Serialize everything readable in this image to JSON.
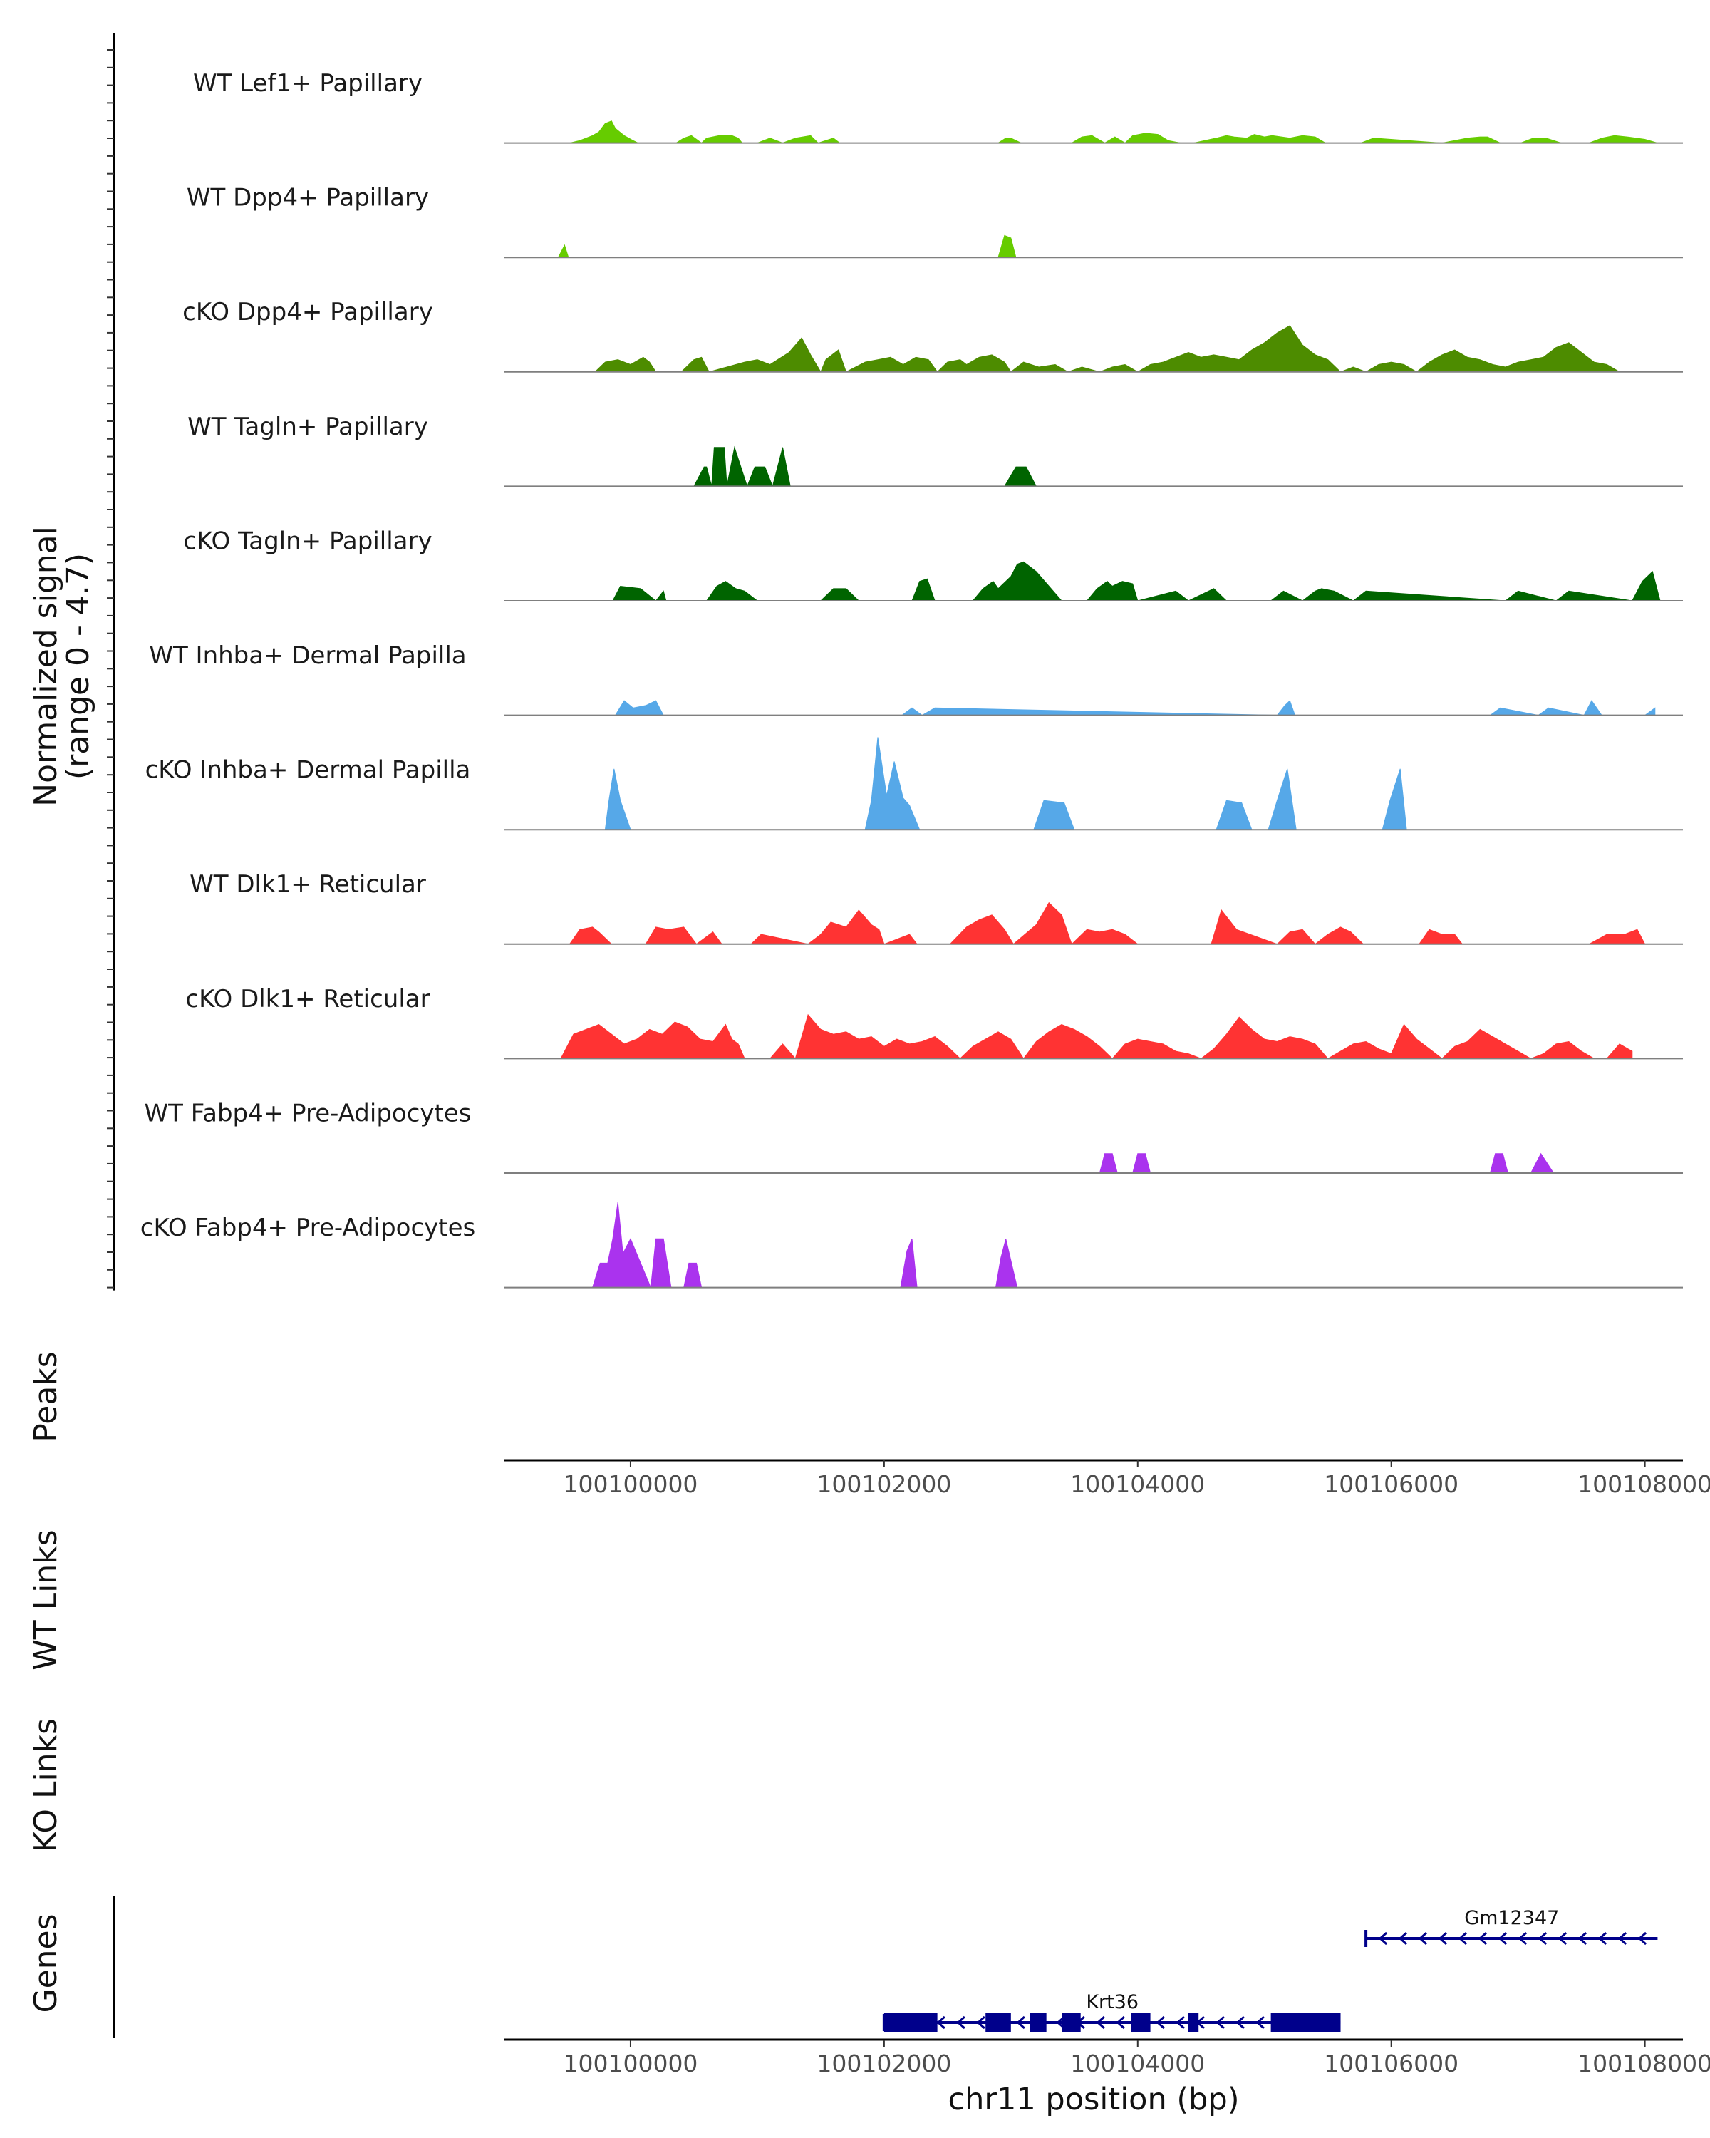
{
  "chart_data": {
    "type": "area",
    "chromosome": "chr11",
    "xlim": [
      100099000,
      100108300
    ],
    "x_ticks": [
      100100000,
      100102000,
      100104000,
      100106000,
      100108000
    ],
    "x_tick_labels": [
      "100100000",
      "100102000",
      "100104000",
      "100106000",
      "100108000"
    ],
    "xlabel": "chr11 position (bp)",
    "ylabel_line1": "Normalized signal",
    "ylabel_line2": "(range 0 - 4.7)",
    "ylim": [
      0,
      4.7
    ],
    "peaks_label": "Peaks",
    "wt_links_label": "WT Links",
    "ko_links_label": "KO Links",
    "genes_label": "Genes",
    "series": [
      {
        "name": "WT Lef1+ Papillary",
        "color": "#66cc00",
        "x": [
          100099520,
          100099600,
          100099700,
          100099750,
          100099800,
          100099850,
          100099880,
          100099950,
          100100020,
          100100060,
          100100360,
          100100420,
          100100480,
          100100560,
          100100600,
          100100700,
          100100800,
          100100850,
          100100880,
          100101000,
          100101050,
          100101100,
          100101200,
          100101300,
          100101420,
          100101480,
          100101600,
          100101650,
          100102900,
          100102960,
          100103000,
          100103080,
          100103480,
          100103560,
          100103640,
          100103740,
          100103820,
          100103900,
          100103960,
          100104060,
          100104160,
          100104240,
          100104340,
          100104440,
          100104620,
          100104700,
          100104760,
          100104860,
          100104920,
          100105000,
          100105060,
          100105200,
          100105300,
          100105400,
          100105480,
          100105560,
          100105760,
          100105860,
          100106400,
          100106500,
          100106600,
          100106700,
          100106760,
          100106860,
          100107020,
          100107120,
          100107220,
          100107340,
          100107560,
          100107660,
          100107760,
          100107860,
          100108000,
          100108100
        ],
        "y": [
          0,
          0.1,
          0.3,
          0.45,
          0.8,
          0.9,
          0.6,
          0.3,
          0.1,
          0,
          0,
          0.2,
          0.3,
          0,
          0.2,
          0.3,
          0.3,
          0.2,
          0,
          0,
          0.1,
          0.2,
          0,
          0.2,
          0.3,
          0,
          0.2,
          0,
          0,
          0.2,
          0.2,
          0,
          0,
          0.25,
          0.3,
          0,
          0.25,
          0,
          0.3,
          0.4,
          0.35,
          0.1,
          0,
          0,
          0.2,
          0.3,
          0.25,
          0.2,
          0.35,
          0.25,
          0.3,
          0.2,
          0.3,
          0.25,
          0,
          0,
          0,
          0.2,
          0,
          0.1,
          0.2,
          0.25,
          0.25,
          0,
          0,
          0.2,
          0.2,
          0,
          0,
          0.2,
          0.3,
          0.25,
          0.15,
          0
        ]
      },
      {
        "name": "WT Dpp4+ Papillary",
        "color": "#66cc00",
        "x": [
          100099430,
          100099480,
          100099510,
          100102900,
          100102950,
          100103000,
          100103040
        ],
        "y": [
          0,
          0.5,
          0,
          0,
          0.9,
          0.8,
          0
        ]
      },
      {
        "name": "cKO Dpp4+ Papillary",
        "color": "#4d8c00",
        "x": [
          100099720,
          100099800,
          100099900,
          100100000,
          100100100,
          100100150,
          100100200,
          100100400,
          100100500,
          100100560,
          100100620,
          100100900,
          100101000,
          100101100,
          100101250,
          100101350,
          100101420,
          100101500,
          100101540,
          100101640,
          100101700,
          100101850,
          100101950,
          100102050,
          100102150,
          100102250,
          100102350,
          100102420,
          100102500,
          100102600,
          100102650,
          100102750,
          100102850,
          100102950,
          100103000,
          100103100,
          100103220,
          100103350,
          100103450,
          100103560,
          100103700,
          100103800,
          100103900,
          100104000,
          100104100,
          100104200,
          100104300,
          100104400,
          100104500,
          100104600,
          100104700,
          100104800,
          100104900,
          100105000,
          100105100,
          100105200,
          100105300,
          100105400,
          100105500,
          100105600,
          100105700,
          100105800,
          100105900,
          100106000,
          100106100,
          100106200,
          100106300,
          100106400,
          100106500,
          100106600,
          100106700,
          100106800,
          100106900,
          100107000,
          100107100,
          100107200,
          100107300,
          100107400,
          100107500,
          100107600,
          100107700,
          100107800,
          100107900,
          100108000
        ],
        "y": [
          0,
          0.4,
          0.5,
          0.3,
          0.6,
          0.4,
          0,
          0,
          0.5,
          0.6,
          0,
          0.4,
          0.5,
          0.3,
          0.8,
          1.4,
          0.7,
          0,
          0.5,
          0.9,
          0,
          0.4,
          0.5,
          0.6,
          0.3,
          0.6,
          0.5,
          0,
          0.4,
          0.5,
          0.3,
          0.6,
          0.7,
          0.4,
          0,
          0.4,
          0.2,
          0.3,
          0,
          0.2,
          0,
          0.2,
          0.3,
          0,
          0.3,
          0.4,
          0.6,
          0.8,
          0.6,
          0.7,
          0.6,
          0.5,
          0.9,
          1.2,
          1.6,
          1.9,
          1.1,
          0.7,
          0.5,
          0,
          0.2,
          0,
          0.3,
          0.4,
          0.3,
          0,
          0.4,
          0.7,
          0.9,
          0.6,
          0.5,
          0.3,
          0.2,
          0.4,
          0.5,
          0.6,
          1.0,
          1.2,
          0.8,
          0.4,
          0.3,
          0,
          0,
          0
        ]
      },
      {
        "name": "WT Tagln+ Papillary",
        "color": "#006400",
        "x": [
          100100500,
          100100580,
          100100600,
          100100640,
          100100660,
          100100740,
          100100760,
          100100820,
          100100920,
          100100980,
          100101060,
          100101120,
          100101200,
          100101260,
          100102950,
          100103040,
          100103120,
          100103200
        ],
        "y": [
          0,
          0.8,
          0.8,
          0,
          1.6,
          1.6,
          0,
          1.6,
          0,
          0.8,
          0.8,
          0,
          1.6,
          0,
          0,
          0.8,
          0.8,
          0
        ]
      },
      {
        "name": "cKO Tagln+ Papillary",
        "color": "#006400",
        "x": [
          100099860,
          100099920,
          100100080,
          100100200,
          100100260,
          100100280,
          100100600,
          100100680,
          100100750,
          100100830,
          100100900,
          100101000,
          100101500,
          100101600,
          100101700,
          100101800,
          100102220,
          100102280,
          100102340,
          100102400,
          100102700,
          100102780,
          100102860,
          100102900,
          100103000,
          100103050,
          100103100,
          100103200,
          100103300,
          100103400,
          100103600,
          100103680,
          100103760,
          100103800,
          100103880,
          100103960,
          100104000,
          100104300,
          100104400,
          100104600,
          100104700,
          100105050,
          100105150,
          100105300,
          100105400,
          100105450,
          100105550,
          100105700,
          100105800,
          100106900,
          100107000,
          100107300,
          100107400,
          100107900,
          100107980,
          100108060,
          100108120
        ],
        "y": [
          0,
          0.6,
          0.5,
          0,
          0.4,
          0,
          0,
          0.6,
          0.8,
          0.5,
          0.4,
          0,
          0,
          0.5,
          0.5,
          0,
          0,
          0.8,
          0.9,
          0,
          0,
          0.5,
          0.8,
          0.5,
          1.0,
          1.5,
          1.6,
          1.2,
          0.6,
          0,
          0,
          0.5,
          0.8,
          0.6,
          0.8,
          0.7,
          0,
          0.4,
          0,
          0.5,
          0,
          0,
          0.4,
          0,
          0.4,
          0.5,
          0.4,
          0,
          0.4,
          0,
          0.4,
          0,
          0.4,
          0,
          0.8,
          1.2,
          0
        ]
      },
      {
        "name": "WT Inhba+ Dermal Papilla",
        "color": "#56a8e8",
        "x": [
          100099880,
          100099950,
          100100020,
          100100120,
          100100200,
          100100260,
          100102140,
          100102220,
          100102300,
          100102400,
          100105100,
          100105160,
          100105200,
          100105240,
          100106780,
          100106860,
          100107160,
          100107240,
          100107520,
          100107580,
          100107660,
          100108000,
          100108080
        ],
        "y": [
          0,
          0.6,
          0.3,
          0.4,
          0.6,
          0,
          0,
          0.3,
          0,
          0.3,
          0,
          0.4,
          0.6,
          0,
          0,
          0.3,
          0,
          0.3,
          0,
          0.6,
          0,
          0,
          0.3
        ]
      },
      {
        "name": "cKO Inhba+ Dermal Papilla",
        "color": "#56a8e8",
        "x": [
          100099800,
          100099830,
          100099870,
          100099920,
          100100000,
          100101850,
          100101900,
          100101950,
          100102020,
          100102080,
          100102150,
          100102200,
          100102280,
          100103180,
          100103260,
          100103420,
          100103500,
          100104620,
          100104700,
          100104820,
          100104900,
          100105030,
          100105100,
          100105180,
          100105250,
          100105930,
          100105990,
          100106070,
          100106120
        ],
        "y": [
          0,
          1.2,
          2.5,
          1.2,
          0,
          0,
          1.2,
          3.8,
          1.4,
          2.8,
          1.3,
          1.0,
          0,
          0,
          1.2,
          1.1,
          0,
          0,
          1.2,
          1.1,
          0,
          0,
          1.2,
          2.5,
          0,
          0,
          1.2,
          2.5,
          0
        ]
      },
      {
        "name": "WT Dlk1+ Reticular",
        "color": "#ff3333",
        "x": [
          100099520,
          100099600,
          100099700,
          100099750,
          100099850,
          100100120,
          100100200,
          100100300,
          100100420,
          100100520,
          100100650,
          100100720,
          100100950,
          100101030,
          100101400,
          100101500,
          100101580,
          100101700,
          100101800,
          100101900,
          100101960,
          100102000,
          100102200,
          100102260,
          100102520,
          100102650,
          100102750,
          100102850,
          100102950,
          100103020,
          100103200,
          100103300,
          100103400,
          100103480,
          100103600,
          100103700,
          100103800,
          100103900,
          100104000,
          100104580,
          100104660,
          100104780,
          100105100,
          100105200,
          100105300,
          100105400,
          100105500,
          100105600,
          100105680,
          100105780,
          100106220,
          100106300,
          100106400,
          100106500,
          100106560,
          100107560,
          100107700,
          100107840,
          100107940,
          100108000
        ],
        "y": [
          0,
          0.6,
          0.7,
          0.5,
          0,
          0,
          0.7,
          0.6,
          0.7,
          0,
          0.5,
          0,
          0,
          0.4,
          0,
          0.4,
          0.9,
          0.7,
          1.4,
          0.8,
          0.6,
          0,
          0.4,
          0,
          0,
          0.7,
          1.0,
          1.2,
          0.6,
          0,
          0.8,
          1.7,
          1.2,
          0,
          0.6,
          0.5,
          0.6,
          0.4,
          0,
          0,
          1.4,
          0.6,
          0,
          0.5,
          0.6,
          0,
          0.4,
          0.7,
          0.5,
          0,
          0,
          0.6,
          0.4,
          0.4,
          0,
          0,
          0.4,
          0.4,
          0.6,
          0
        ]
      },
      {
        "name": "cKO Dlk1+ Reticular",
        "color": "#ff3333",
        "x": [
          100099450,
          100099550,
          100099650,
          100099750,
          100099850,
          100099950,
          100100050,
          100100150,
          100100250,
          100100350,
          100100450,
          100100550,
          100100650,
          100100750,
          100100800,
          100100850,
          100100900,
          100101100,
          100101200,
          100101300,
          100101400,
          100101500,
          100101600,
          100101700,
          100101800,
          100101900,
          100102000,
          100102100,
          100102200,
          100102300,
          100102400,
          100102500,
          100102600,
          100102700,
          100102800,
          100102900,
          100103000,
          100103100,
          100103200,
          100103300,
          100103400,
          100103500,
          100103600,
          100103700,
          100103800,
          100103900,
          100104000,
          100104100,
          100104200,
          100104300,
          100104400,
          100104500,
          100104600,
          100104700,
          100104800,
          100104900,
          100105000,
          100105100,
          100105200,
          100105300,
          100105400,
          100105500,
          100105600,
          100105700,
          100105800,
          100105900,
          100106000,
          100106100,
          100106200,
          100106300,
          100106400,
          100106500,
          100106600,
          100106700,
          100106800,
          100106900,
          100107000,
          100107100,
          100107200,
          100107300,
          100107400,
          100107500,
          100107600,
          100107700,
          100107800,
          100107900
        ],
        "y": [
          0,
          1.0,
          1.2,
          1.4,
          1.0,
          0.6,
          0.8,
          1.2,
          1.0,
          1.5,
          1.3,
          0.8,
          0.7,
          1.4,
          0.8,
          0.6,
          0,
          0,
          0.6,
          0,
          1.8,
          1.2,
          1.0,
          1.1,
          0.8,
          0.9,
          0.5,
          0.8,
          0.6,
          0.7,
          0.9,
          0.5,
          0,
          0.5,
          0.8,
          1.1,
          0.8,
          0,
          0.7,
          1.1,
          1.4,
          1.2,
          0.9,
          0.5,
          0,
          0.6,
          0.8,
          0.7,
          0.6,
          0.3,
          0.2,
          0,
          0.4,
          1.0,
          1.7,
          1.2,
          0.8,
          0.7,
          0.9,
          0.8,
          0.6,
          0,
          0.3,
          0.6,
          0.7,
          0.4,
          0.2,
          1.4,
          0.8,
          0.4,
          0,
          0.5,
          0.7,
          1.2,
          0.9,
          0.6,
          0.3,
          0,
          0.2,
          0.6,
          0.7,
          0.3,
          0,
          0,
          0.6,
          0.3
        ]
      },
      {
        "name": "WT Fabp4+ Pre-Adipocytes",
        "color": "#aa33ee",
        "x": [
          100103700,
          100103740,
          100103800,
          100103840,
          100103960,
          100104000,
          100104060,
          100104100,
          100106780,
          100106820,
          100106880,
          100106920,
          100107100,
          100107180,
          100107280
        ],
        "y": [
          0,
          0.8,
          0.8,
          0,
          0,
          0.8,
          0.8,
          0,
          0,
          0.8,
          0.8,
          0,
          0,
          0.8,
          0
        ]
      },
      {
        "name": "cKO Fabp4+ Pre-Adipocytes",
        "color": "#aa33ee",
        "x": [
          100099700,
          100099760,
          100099820,
          100099860,
          100099900,
          100099940,
          100100000,
          100100080,
          100100160,
          100100200,
          100100260,
          100100320,
          100100420,
          100100460,
          100100520,
          100100560,
          100102130,
          100102180,
          100102220,
          100102260,
          100102880,
          100102920,
          100102960,
          100103050
        ],
        "y": [
          0,
          1.0,
          1.0,
          2.0,
          3.5,
          1.4,
          2.0,
          1.0,
          0,
          2.0,
          2.0,
          0,
          0,
          1.0,
          1.0,
          0,
          0,
          1.5,
          2.0,
          0,
          0,
          1.2,
          2.0,
          0
        ]
      }
    ],
    "genes": [
      {
        "name": "Gm12347",
        "strand": "-",
        "start": 100105800,
        "end": 100108100,
        "row": 1,
        "exons": []
      },
      {
        "name": "Krt36",
        "strand": "-",
        "start": 100102000,
        "end": 100105600,
        "row": 2,
        "exons": [
          [
            100102000,
            100102420
          ],
          [
            100102800,
            100103000
          ],
          [
            100103150,
            100103280
          ],
          [
            100103400,
            100103550
          ],
          [
            100103950,
            100104100
          ],
          [
            100104400,
            100104480
          ],
          [
            100105050,
            100105600
          ]
        ]
      }
    ]
  }
}
